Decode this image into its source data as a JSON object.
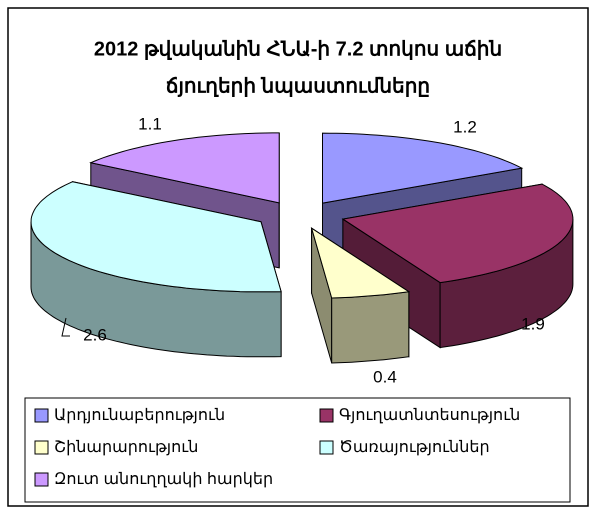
{
  "chart_data": {
    "type": "pie3d",
    "title": [
      "2012 թվականին ՀՆԱ-ի 7.2 տոկոս աճին",
      "ճյուղերի նպաստումները"
    ],
    "categories": [
      "Արդյունաբերություն",
      "Գյուղատնտեսություն",
      "Շինարարություն",
      "Ծառայություններ",
      "Զուտ անուղղակի հարկեր"
    ],
    "values": [
      1.2,
      1.9,
      0.4,
      2.6,
      1.1
    ],
    "colors": [
      "#9999ff",
      "#993366",
      "#ffffcc",
      "#ccffff",
      "#cc99ff"
    ],
    "legend": "bottom"
  }
}
